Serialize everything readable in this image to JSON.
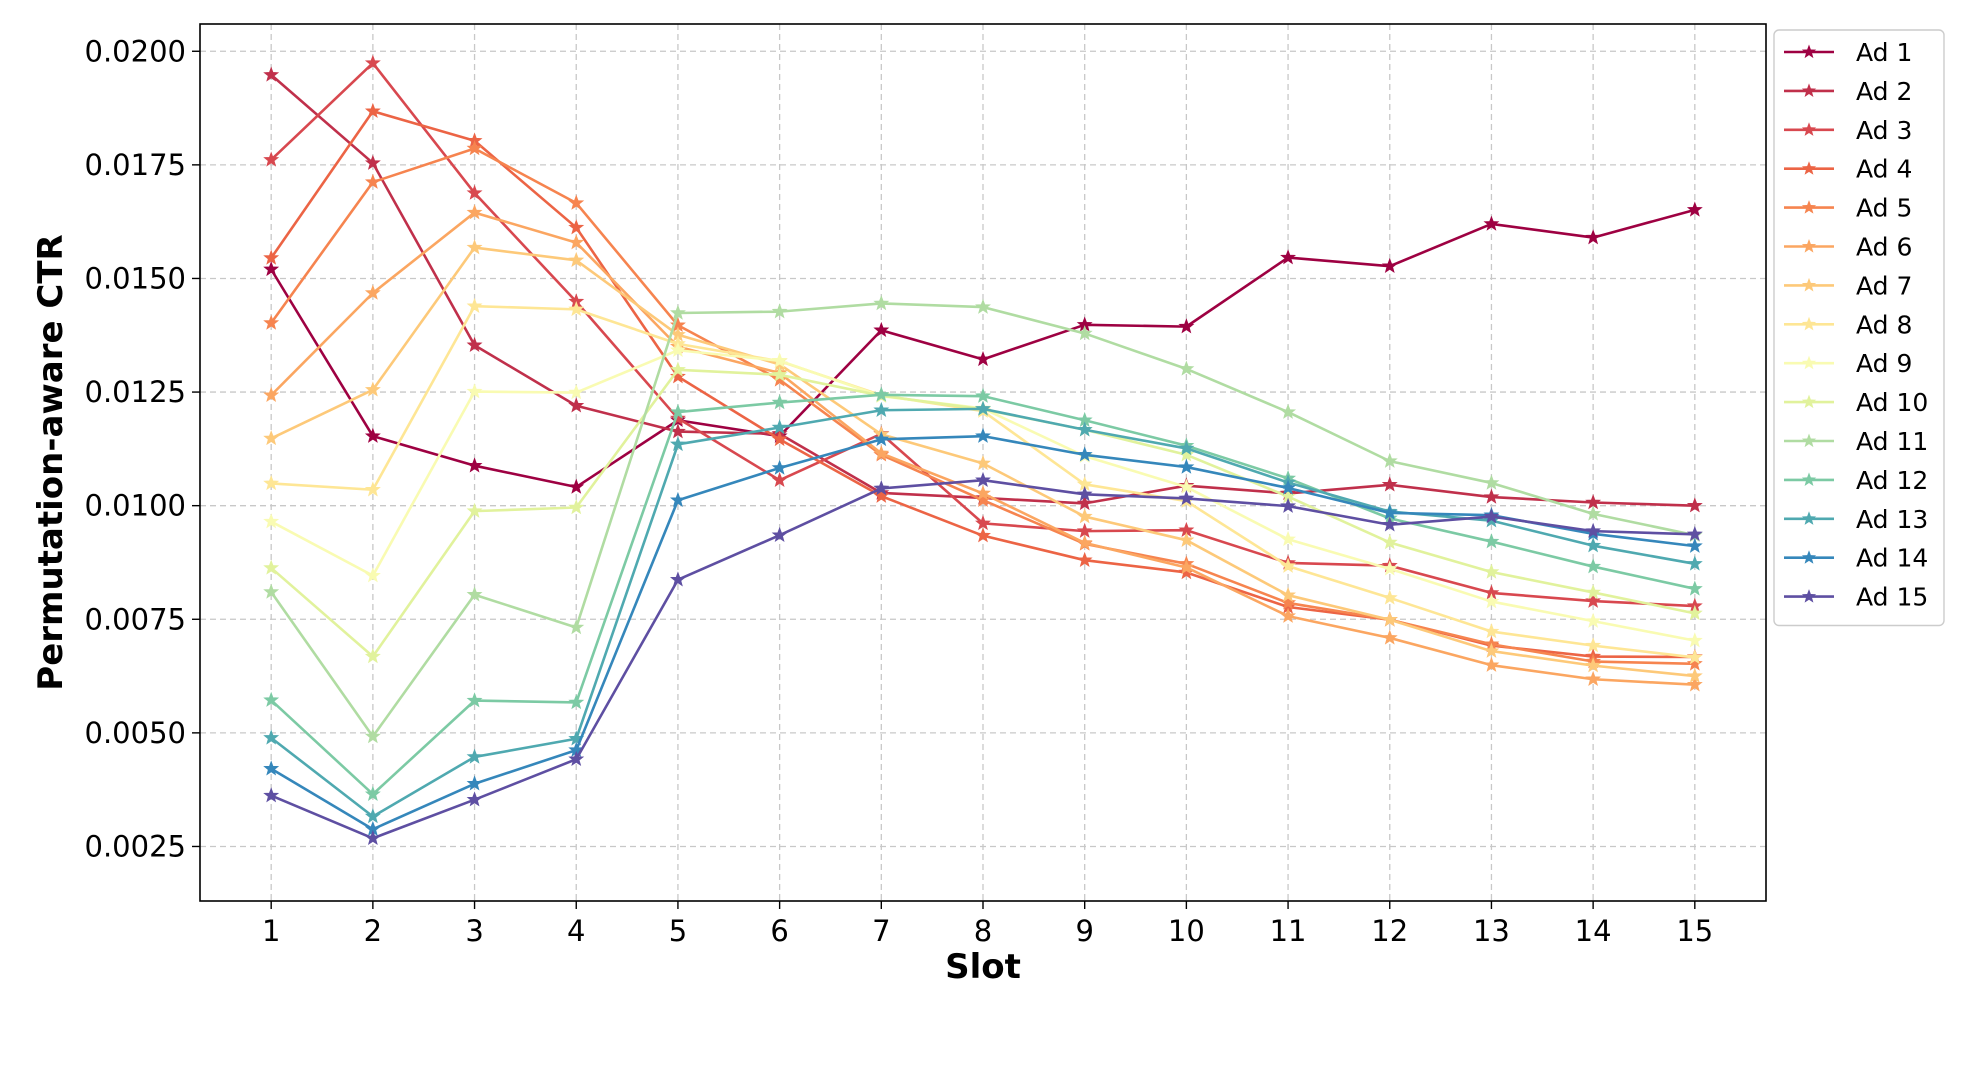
{
  "chart_data": {
    "type": "line",
    "title": "",
    "xlabel": "Slot",
    "ylabel": "Permutation-aware CTR",
    "x": [
      1,
      2,
      3,
      4,
      5,
      6,
      7,
      8,
      9,
      10,
      11,
      12,
      13,
      14,
      15
    ],
    "x_tick_labels": [
      "1",
      "2",
      "3",
      "4",
      "5",
      "6",
      "7",
      "8",
      "9",
      "10",
      "11",
      "12",
      "13",
      "14",
      "15"
    ],
    "ylim": [
      0.0013,
      0.0206
    ],
    "y_ticks": [
      0.0025,
      0.005,
      0.0075,
      0.01,
      0.0125,
      0.015,
      0.0175,
      0.02
    ],
    "y_tick_labels": [
      "0.0025",
      "0.0050",
      "0.0075",
      "0.0100",
      "0.0125",
      "0.0150",
      "0.0175",
      "0.0200"
    ],
    "grid": true,
    "legend_position": "outside-right-top",
    "marker": "star",
    "series": [
      {
        "name": "Ad 1",
        "color": "#9e0142",
        "values": [
          0.0152,
          0.01153,
          0.01088,
          0.01041,
          0.01188,
          0.01153,
          0.01386,
          0.01322,
          0.01398,
          0.01394,
          0.01546,
          0.01527,
          0.0162,
          0.0159,
          0.01651
        ]
      },
      {
        "name": "Ad 2",
        "color": "#c0304b",
        "values": [
          0.01948,
          0.01754,
          0.01353,
          0.0122,
          0.01163,
          0.01158,
          0.01028,
          0.01017,
          0.01005,
          0.01044,
          0.01027,
          0.01046,
          0.01019,
          0.01007,
          0.01
        ]
      },
      {
        "name": "Ad 3",
        "color": "#d8484f",
        "values": [
          0.01761,
          0.01974,
          0.01688,
          0.01449,
          0.01192,
          0.01056,
          0.01158,
          0.00961,
          0.00944,
          0.00946,
          0.00874,
          0.00868,
          0.00808,
          0.0079,
          0.00779
        ]
      },
      {
        "name": "Ad 4",
        "color": "#ec6445",
        "values": [
          0.01545,
          0.01868,
          0.01803,
          0.01612,
          0.01284,
          0.01146,
          0.01021,
          0.00934,
          0.0088,
          0.00853,
          0.00777,
          0.00749,
          0.00692,
          0.00668,
          0.00667
        ]
      },
      {
        "name": "Ad 5",
        "color": "#f6844f",
        "values": [
          0.01402,
          0.01712,
          0.01786,
          0.01666,
          0.01397,
          0.01277,
          0.01112,
          0.01012,
          0.00916,
          0.00872,
          0.00786,
          0.00749,
          0.00695,
          0.00657,
          0.00652
        ]
      },
      {
        "name": "Ad 6",
        "color": "#fba661",
        "values": [
          0.01243,
          0.01468,
          0.01645,
          0.01579,
          0.0135,
          0.01292,
          0.01115,
          0.01027,
          0.00918,
          0.00864,
          0.00757,
          0.00709,
          0.00649,
          0.00618,
          0.00606
        ]
      },
      {
        "name": "Ad 7",
        "color": "#fdc979",
        "values": [
          0.01148,
          0.01255,
          0.01568,
          0.0154,
          0.01376,
          0.01311,
          0.01157,
          0.01093,
          0.00976,
          0.00924,
          0.00803,
          0.00749,
          0.0068,
          0.00648,
          0.00625
        ]
      },
      {
        "name": "Ad 8",
        "color": "#fee695",
        "values": [
          0.01049,
          0.01035,
          0.01439,
          0.01432,
          0.01356,
          0.01318,
          0.01243,
          0.01208,
          0.01047,
          0.0101,
          0.00867,
          0.00797,
          0.00723,
          0.00692,
          0.00666
        ]
      },
      {
        "name": "Ad 9",
        "color": "#f9fbb2",
        "values": [
          0.00965,
          0.00846,
          0.01251,
          0.01249,
          0.01342,
          0.01319,
          0.01241,
          0.01214,
          0.01109,
          0.01041,
          0.00926,
          0.00861,
          0.00789,
          0.00746,
          0.00703
        ]
      },
      {
        "name": "Ad 10",
        "color": "#e1f29c",
        "values": [
          0.00863,
          0.00668,
          0.00988,
          0.00996,
          0.01299,
          0.01288,
          0.01242,
          0.01212,
          0.01167,
          0.01112,
          0.0102,
          0.00919,
          0.00854,
          0.00809,
          0.00763
        ]
      },
      {
        "name": "Ad 11",
        "color": "#b0dca2",
        "values": [
          0.0081,
          0.00492,
          0.00804,
          0.00732,
          0.01424,
          0.01427,
          0.01445,
          0.01437,
          0.01379,
          0.01301,
          0.01206,
          0.01098,
          0.0105,
          0.00982,
          0.00935
        ]
      },
      {
        "name": "Ad 12",
        "color": "#7ccaa4",
        "values": [
          0.00572,
          0.00365,
          0.00571,
          0.00567,
          0.01206,
          0.01227,
          0.01244,
          0.01241,
          0.01188,
          0.01132,
          0.0106,
          0.00972,
          0.00921,
          0.00866,
          0.00817
        ]
      },
      {
        "name": "Ad 13",
        "color": "#4fa9b0",
        "values": [
          0.00489,
          0.00316,
          0.00447,
          0.00487,
          0.01135,
          0.01172,
          0.0121,
          0.01213,
          0.01167,
          0.01126,
          0.01051,
          0.00987,
          0.00967,
          0.00912,
          0.00872
        ]
      },
      {
        "name": "Ad 14",
        "color": "#3587bb",
        "values": [
          0.00421,
          0.00288,
          0.00388,
          0.00462,
          0.01012,
          0.01083,
          0.01146,
          0.01153,
          0.01112,
          0.01085,
          0.01039,
          0.00984,
          0.00979,
          0.00938,
          0.00911
        ]
      },
      {
        "name": "Ad 15",
        "color": "#5e4fa2",
        "values": [
          0.00362,
          0.00268,
          0.00353,
          0.00442,
          0.00837,
          0.00935,
          0.01038,
          0.01056,
          0.01025,
          0.01016,
          0.00999,
          0.00958,
          0.00976,
          0.00944,
          0.00937
        ]
      }
    ]
  }
}
